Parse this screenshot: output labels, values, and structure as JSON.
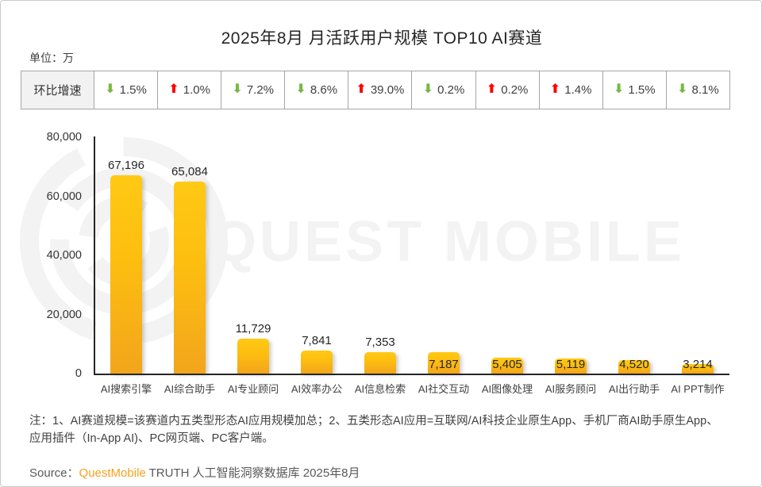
{
  "title": "2025年8月 月活跃用户规模 TOP10 AI赛道",
  "unit_label": "单位：万",
  "icons": {
    "up_arrow": "⬆",
    "down_arrow": "⬇"
  },
  "colors": {
    "up_red": "#fe0000",
    "down_green": "#77b843",
    "bar_top": "#ffc914",
    "bar_bottom": "#f2a51c",
    "brand_orange": "#f7a11c",
    "watermark_gray": "#f3f3f3"
  },
  "growth_table": {
    "header": "环比增速",
    "cells": [
      {
        "direction": "down",
        "value": "1.5%"
      },
      {
        "direction": "up",
        "value": "1.0%"
      },
      {
        "direction": "down",
        "value": "7.2%"
      },
      {
        "direction": "down",
        "value": "8.6%"
      },
      {
        "direction": "up",
        "value": "39.0%"
      },
      {
        "direction": "down",
        "value": "0.2%"
      },
      {
        "direction": "up",
        "value": "0.2%"
      },
      {
        "direction": "up",
        "value": "1.4%"
      },
      {
        "direction": "down",
        "value": "1.5%"
      },
      {
        "direction": "down",
        "value": "8.1%"
      }
    ]
  },
  "chart_data": {
    "type": "bar",
    "title": "2025年8月 月活跃用户规模 TOP10 AI赛道",
    "unit": "万",
    "categories": [
      "AI搜索引擎",
      "AI综合助手",
      "AI专业顾问",
      "AI效率办公",
      "AI信息检索",
      "AI社交互动",
      "AI图像处理",
      "AI服务顾问",
      "AI出行助手",
      "AI PPT制作"
    ],
    "values": [
      67196,
      65084,
      11729,
      7841,
      7353,
      7187,
      5405,
      5119,
      4520,
      3214
    ],
    "value_labels": [
      "67,196",
      "65,084",
      "11,729",
      "7,841",
      "7,353",
      "7,187",
      "5,405",
      "5,119",
      "4,520",
      "3,214"
    ],
    "mom_growth": [
      "-1.5%",
      "+1.0%",
      "-7.2%",
      "-8.6%",
      "+39.0%",
      "-0.2%",
      "+0.2%",
      "+1.4%",
      "-1.5%",
      "-8.1%"
    ],
    "ylim": [
      0,
      80000
    ],
    "yticks": [
      "0",
      "20,000",
      "40,000",
      "60,000",
      "80,000"
    ],
    "grid": false,
    "legend": false,
    "label_overlaps_bar_from_index": 5
  },
  "watermark": {
    "text": "QUEST MOBILE",
    "logo": "questmobile-rings-logo"
  },
  "notes": "注：1、AI赛道规模=该赛道内五类型形态AI应用规模加总；2、五类形态AI应用=互联网/AI科技企业原生App、手机厂商AI助手原生App、应用插件（In-App AI)、PC网页端、PC客户端。",
  "source": {
    "prefix": "Source：",
    "brand": "QuestMobile",
    "suffix": " TRUTH 人工智能洞察数据库 2025年8月"
  }
}
